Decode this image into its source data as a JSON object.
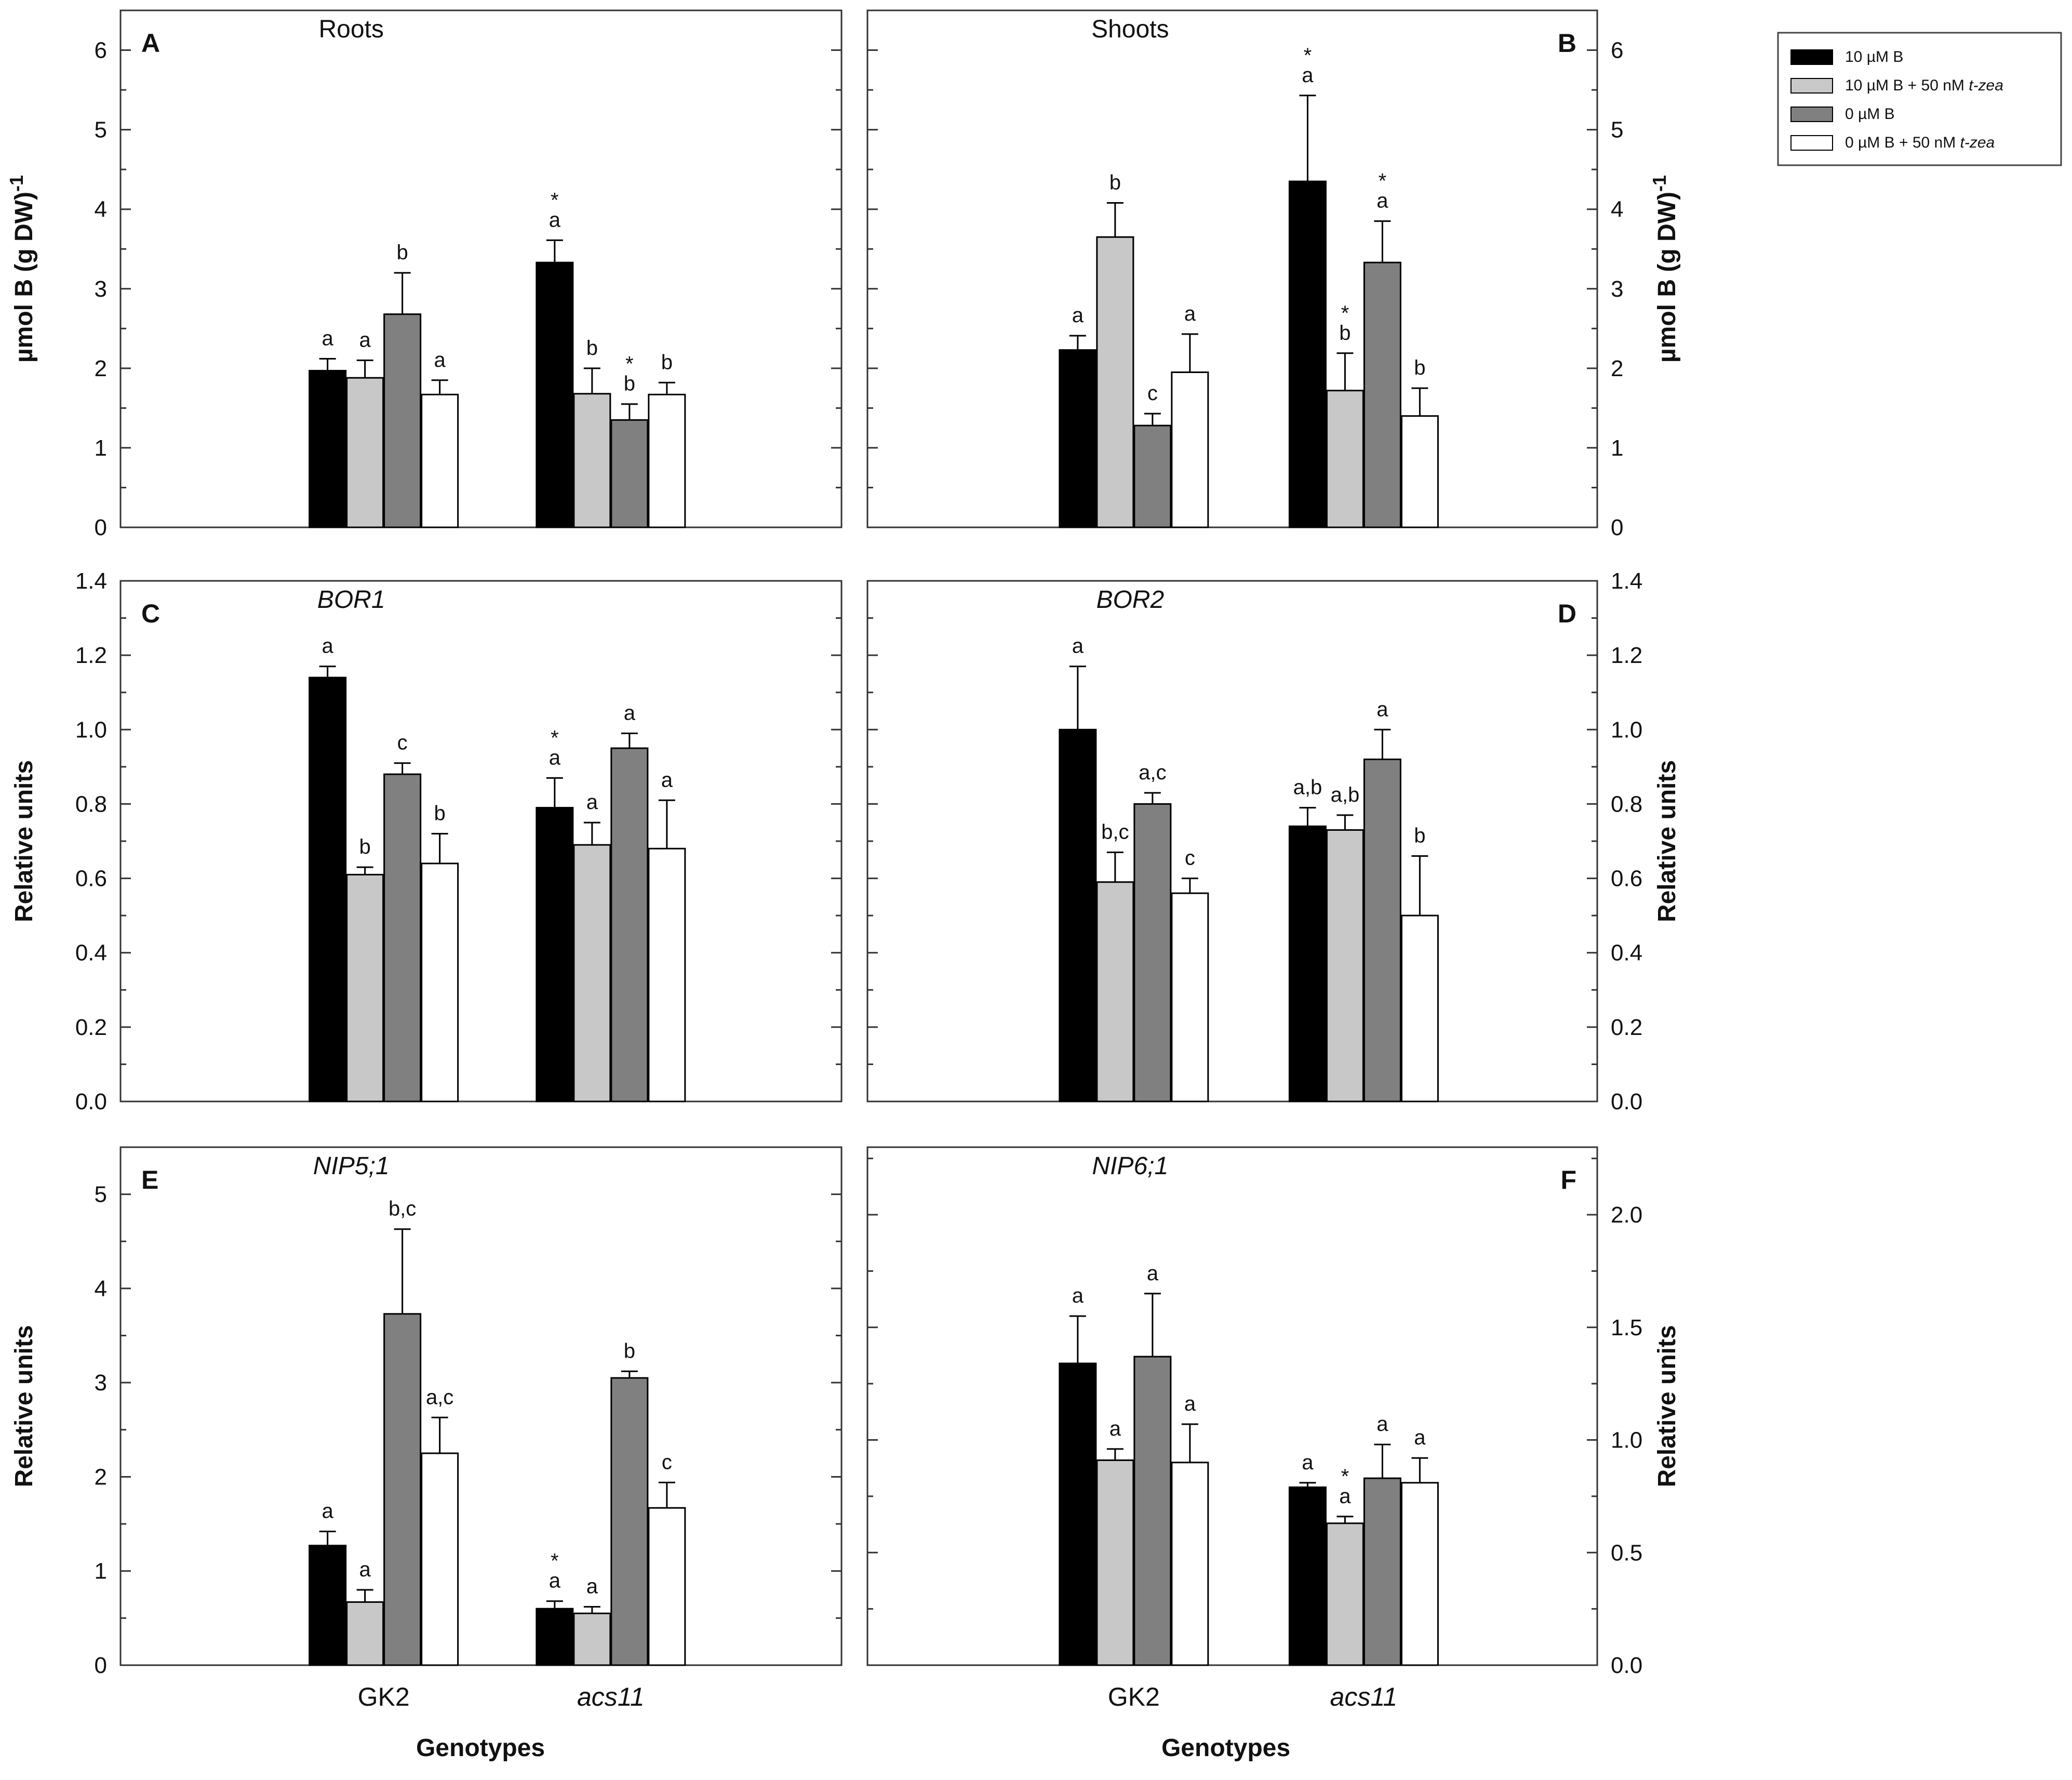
{
  "series": [
    {
      "name": "10 µM B",
      "color": "#000000"
    },
    {
      "name": "10 µM B + 50 nM t-zea",
      "color": "#c8c8c8"
    },
    {
      "name": "0 µM B",
      "color": "#808080"
    },
    {
      "name": "0 µM B + 50 nM t-zea",
      "color": "#ffffff"
    }
  ],
  "legend": {
    "items": [
      "10 µM B",
      "10 µM B + 50 nM ",
      "0 µM B",
      "0 µM B + 50 nM "
    ],
    "italic_suffix": "t-zea"
  },
  "x_title": "Genotypes",
  "chart_data": [
    {
      "type": "bar",
      "letter": "A",
      "title": "Roots",
      "title_italic": false,
      "ylabel": "µmol B (g DW)-1",
      "ylim": [
        0,
        6.5
      ],
      "ticks": [
        0,
        1,
        2,
        3,
        4,
        5,
        6
      ],
      "tick_labels": [
        "0",
        "1",
        "2",
        "3",
        "4",
        "5",
        "6"
      ],
      "minor_step": 0.5,
      "categories": [
        "GK2",
        "acs11"
      ],
      "series": [
        {
          "name": "10 µM B",
          "values": [
            1.97,
            3.33
          ],
          "errors": [
            0.15,
            0.28
          ],
          "labels": [
            "a",
            "*\na"
          ]
        },
        {
          "name": "10 µM B + 50 nM t-zea",
          "values": [
            1.88,
            1.68
          ],
          "errors": [
            0.22,
            0.32
          ],
          "labels": [
            "a",
            "b"
          ]
        },
        {
          "name": "0 µM B",
          "values": [
            2.68,
            1.35
          ],
          "errors": [
            0.52,
            0.2
          ],
          "labels": [
            "b",
            "*\nb"
          ]
        },
        {
          "name": "0 µM B + 50 nM t-zea",
          "values": [
            1.67,
            1.67
          ],
          "errors": [
            0.18,
            0.15
          ],
          "labels": [
            "a",
            "b"
          ]
        }
      ]
    },
    {
      "type": "bar",
      "letter": "B",
      "title": "Shoots",
      "title_italic": false,
      "ylabel": "µmol B (g DW)-1",
      "ylim": [
        0,
        6.5
      ],
      "ticks": [
        0,
        1,
        2,
        3,
        4,
        5,
        6
      ],
      "tick_labels": [
        "0",
        "1",
        "2",
        "3",
        "4",
        "5",
        "6"
      ],
      "minor_step": 0.5,
      "categories": [
        "GK2",
        "acs11"
      ],
      "series": [
        {
          "name": "10 µM B",
          "values": [
            2.23,
            4.35
          ],
          "errors": [
            0.18,
            1.08
          ],
          "labels": [
            "a",
            "*\na"
          ]
        },
        {
          "name": "10 µM B + 50 nM t-zea",
          "values": [
            3.65,
            1.72
          ],
          "errors": [
            0.43,
            0.47
          ],
          "labels": [
            "b",
            "*\nb"
          ]
        },
        {
          "name": "0 µM B",
          "values": [
            1.28,
            3.33
          ],
          "errors": [
            0.15,
            0.52
          ],
          "labels": [
            "c",
            "*\na"
          ]
        },
        {
          "name": "0 µM B + 50 nM t-zea",
          "values": [
            1.95,
            1.4
          ],
          "errors": [
            0.48,
            0.35
          ],
          "labels": [
            "a",
            "b"
          ]
        }
      ]
    },
    {
      "type": "bar",
      "letter": "C",
      "title": "BOR1",
      "title_italic": true,
      "ylabel": "Relative units",
      "ylim": [
        0,
        1.4
      ],
      "ticks": [
        0,
        0.2,
        0.4,
        0.6,
        0.8,
        1.0,
        1.2,
        1.4
      ],
      "tick_labels": [
        "0.0",
        "0.2",
        "0.4",
        "0.6",
        "0.8",
        "1.0",
        "1.2",
        "1.4"
      ],
      "minor_step": 0.1,
      "categories": [
        "GK2",
        "acs11"
      ],
      "series": [
        {
          "name": "10 µM B",
          "values": [
            1.14,
            0.79
          ],
          "errors": [
            0.03,
            0.08
          ],
          "labels": [
            "a",
            "*\na"
          ]
        },
        {
          "name": "10 µM B + 50 nM t-zea",
          "values": [
            0.61,
            0.69
          ],
          "errors": [
            0.02,
            0.06
          ],
          "labels": [
            "b",
            "a"
          ]
        },
        {
          "name": "0 µM B",
          "values": [
            0.88,
            0.95
          ],
          "errors": [
            0.03,
            0.04
          ],
          "labels": [
            "c",
            "a"
          ]
        },
        {
          "name": "0 µM B + 50 nM t-zea",
          "values": [
            0.64,
            0.68
          ],
          "errors": [
            0.08,
            0.13
          ],
          "labels": [
            "b",
            "a"
          ]
        }
      ]
    },
    {
      "type": "bar",
      "letter": "D",
      "title": "BOR2",
      "title_italic": true,
      "ylabel": "Relative units",
      "ylim": [
        0,
        1.4
      ],
      "ticks": [
        0,
        0.2,
        0.4,
        0.6,
        0.8,
        1.0,
        1.2,
        1.4
      ],
      "tick_labels": [
        "0.0",
        "0.2",
        "0.4",
        "0.6",
        "0.8",
        "1.0",
        "1.2",
        "1.4"
      ],
      "minor_step": 0.1,
      "categories": [
        "GK2",
        "acs11"
      ],
      "series": [
        {
          "name": "10 µM B",
          "values": [
            1.0,
            0.74
          ],
          "errors": [
            0.17,
            0.05
          ],
          "labels": [
            "a",
            "a,b"
          ]
        },
        {
          "name": "10 µM B + 50 nM t-zea",
          "values": [
            0.59,
            0.73
          ],
          "errors": [
            0.08,
            0.04
          ],
          "labels": [
            "b,c",
            "a,b"
          ]
        },
        {
          "name": "0 µM B",
          "values": [
            0.8,
            0.92
          ],
          "errors": [
            0.03,
            0.08
          ],
          "labels": [
            "a,c",
            "a"
          ]
        },
        {
          "name": "0 µM B + 50 nM t-zea",
          "values": [
            0.56,
            0.5
          ],
          "errors": [
            0.04,
            0.16
          ],
          "labels": [
            "c",
            "b"
          ]
        }
      ]
    },
    {
      "type": "bar",
      "letter": "E",
      "title": "NIP5;1",
      "title_italic": true,
      "ylabel": "Relative units",
      "ylim": [
        0,
        5.5
      ],
      "ticks": [
        0,
        1,
        2,
        3,
        4,
        5
      ],
      "tick_labels": [
        "0",
        "1",
        "2",
        "3",
        "4",
        "5"
      ],
      "minor_step": 0.5,
      "categories": [
        "GK2",
        "acs11"
      ],
      "series": [
        {
          "name": "10 µM B",
          "values": [
            1.27,
            0.6
          ],
          "errors": [
            0.15,
            0.08
          ],
          "labels": [
            "a",
            "*\na"
          ]
        },
        {
          "name": "10 µM B + 50 nM t-zea",
          "values": [
            0.67,
            0.55
          ],
          "errors": [
            0.13,
            0.07
          ],
          "labels": [
            "a",
            "a"
          ]
        },
        {
          "name": "0 µM B",
          "values": [
            3.73,
            3.05
          ],
          "errors": [
            0.9,
            0.07
          ],
          "labels": [
            "b,c",
            "b"
          ]
        },
        {
          "name": "0 µM B + 50 nM t-zea",
          "values": [
            2.25,
            1.67
          ],
          "errors": [
            0.38,
            0.27
          ],
          "labels": [
            "a,c",
            "c"
          ]
        }
      ]
    },
    {
      "type": "bar",
      "letter": "F",
      "title": "NIP6;1",
      "title_italic": true,
      "ylabel": "Relative units",
      "ylim": [
        0,
        2.3
      ],
      "ticks": [
        0,
        0.5,
        1.0,
        1.5,
        2.0
      ],
      "tick_labels": [
        "0.0",
        "0.5",
        "1.0",
        "1.5",
        "2.0"
      ],
      "minor_step": 0.25,
      "categories": [
        "GK2",
        "acs11"
      ],
      "series": [
        {
          "name": "10 µM B",
          "values": [
            1.34,
            0.79
          ],
          "errors": [
            0.21,
            0.02
          ],
          "labels": [
            "a",
            "a"
          ]
        },
        {
          "name": "10 µM B + 50 nM t-zea",
          "values": [
            0.91,
            0.63
          ],
          "errors": [
            0.05,
            0.03
          ],
          "labels": [
            "a",
            "*\na"
          ]
        },
        {
          "name": "0 µM B",
          "values": [
            1.37,
            0.83
          ],
          "errors": [
            0.28,
            0.15
          ],
          "labels": [
            "a",
            "a"
          ]
        },
        {
          "name": "0 µM B + 50 nM t-zea",
          "values": [
            0.9,
            0.81
          ],
          "errors": [
            0.17,
            0.11
          ],
          "labels": [
            "a",
            "a"
          ]
        }
      ]
    }
  ]
}
